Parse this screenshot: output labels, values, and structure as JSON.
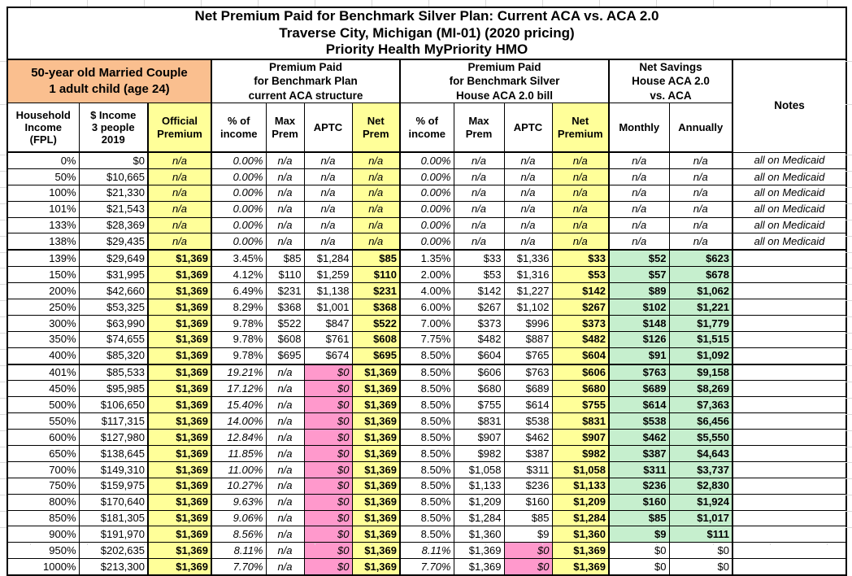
{
  "title_lines": [
    "Net Premium Paid for Benchmark Silver Plan: Current ACA vs. ACA 2.0",
    "Traverse City, Michigan (MI-01) (2020 pricing)",
    "Priority Health MyPriority HMO"
  ],
  "header": {
    "demographic": "50-year old Married Couple\n1 adult child (age 24)",
    "group_aca": "Premium Paid\nfor Benchmark Plan\ncurrent ACA structure",
    "group_aca2": "Premium Paid\nfor Benchmark Silver\nHouse ACA 2.0 bill",
    "group_savings": "Net Savings\nHouse ACA 2.0\nvs. ACA",
    "notes_label": "Notes",
    "columns": [
      "Household\nIncome\n(FPL)",
      "$ Income\n3 people\n2019",
      "Official\nPremium",
      "% of\nincome",
      "Max\nPrem",
      "APTC",
      "Net\nPrem",
      "% of\nincome",
      "Max\nPrem",
      "APTC",
      "Net\nPremium",
      "Monthly",
      "Annually"
    ]
  },
  "colors": {
    "header_orange": "#FABF8F",
    "highlight_yellow": "#FFFF99",
    "aptc_pink": "#FF99CC",
    "savings_green": "#C6EFCE",
    "border": "#000000"
  },
  "chart_data": {
    "type": "table",
    "column_keys": [
      "fpl",
      "income_2019",
      "aca_official_premium",
      "aca_pct_income",
      "aca_max_prem",
      "aca_aptc",
      "aca_net_prem",
      "aca2_pct_income",
      "aca2_max_prem",
      "aca2_aptc",
      "aca2_net_premium",
      "savings_monthly",
      "savings_annually",
      "notes"
    ],
    "rows": [
      {
        "kind": "medicaid",
        "cells": [
          "0%",
          "$0",
          "n/a",
          "0.00%",
          "n/a",
          "n/a",
          "n/a",
          "0.00%",
          "n/a",
          "n/a",
          "n/a",
          "n/a",
          "n/a",
          "all on Medicaid"
        ]
      },
      {
        "kind": "medicaid",
        "cells": [
          "50%",
          "$10,665",
          "n/a",
          "0.00%",
          "n/a",
          "n/a",
          "n/a",
          "0.00%",
          "n/a",
          "n/a",
          "n/a",
          "n/a",
          "n/a",
          "all on Medicaid"
        ]
      },
      {
        "kind": "medicaid",
        "cells": [
          "100%",
          "$21,330",
          "n/a",
          "0.00%",
          "n/a",
          "n/a",
          "n/a",
          "0.00%",
          "n/a",
          "n/a",
          "n/a",
          "n/a",
          "n/a",
          "all on Medicaid"
        ]
      },
      {
        "kind": "medicaid",
        "cells": [
          "101%",
          "$21,543",
          "n/a",
          "0.00%",
          "n/a",
          "n/a",
          "n/a",
          "0.00%",
          "n/a",
          "n/a",
          "n/a",
          "n/a",
          "n/a",
          "all on Medicaid"
        ]
      },
      {
        "kind": "medicaid",
        "cells": [
          "133%",
          "$28,369",
          "n/a",
          "0.00%",
          "n/a",
          "n/a",
          "n/a",
          "0.00%",
          "n/a",
          "n/a",
          "n/a",
          "n/a",
          "n/a",
          "all on Medicaid"
        ]
      },
      {
        "kind": "medicaid",
        "cells": [
          "138%",
          "$29,435",
          "n/a",
          "0.00%",
          "n/a",
          "n/a",
          "n/a",
          "0.00%",
          "n/a",
          "n/a",
          "n/a",
          "n/a",
          "n/a",
          "all on Medicaid"
        ]
      },
      {
        "kind": "mid",
        "cells": [
          "139%",
          "$29,649",
          "$1,369",
          "3.45%",
          "$85",
          "$1,284",
          "$85",
          "1.35%",
          "$33",
          "$1,336",
          "$33",
          "$52",
          "$623",
          ""
        ]
      },
      {
        "kind": "mid",
        "cells": [
          "150%",
          "$31,995",
          "$1,369",
          "4.12%",
          "$110",
          "$1,259",
          "$110",
          "2.00%",
          "$53",
          "$1,316",
          "$53",
          "$57",
          "$678",
          ""
        ]
      },
      {
        "kind": "mid",
        "cells": [
          "200%",
          "$42,660",
          "$1,369",
          "6.49%",
          "$231",
          "$1,138",
          "$231",
          "4.00%",
          "$142",
          "$1,227",
          "$142",
          "$89",
          "$1,062",
          ""
        ]
      },
      {
        "kind": "mid",
        "cells": [
          "250%",
          "$53,325",
          "$1,369",
          "8.29%",
          "$368",
          "$1,001",
          "$368",
          "6.00%",
          "$267",
          "$1,102",
          "$267",
          "$102",
          "$1,221",
          ""
        ]
      },
      {
        "kind": "mid",
        "cells": [
          "300%",
          "$63,990",
          "$1,369",
          "9.78%",
          "$522",
          "$847",
          "$522",
          "7.00%",
          "$373",
          "$996",
          "$373",
          "$148",
          "$1,779",
          ""
        ]
      },
      {
        "kind": "mid",
        "cells": [
          "350%",
          "$74,655",
          "$1,369",
          "9.78%",
          "$608",
          "$761",
          "$608",
          "7.75%",
          "$482",
          "$887",
          "$482",
          "$126",
          "$1,515",
          ""
        ]
      },
      {
        "kind": "mid",
        "cells": [
          "400%",
          "$85,320",
          "$1,369",
          "9.78%",
          "$695",
          "$674",
          "$695",
          "8.50%",
          "$604",
          "$765",
          "$604",
          "$91",
          "$1,092",
          ""
        ]
      },
      {
        "kind": "high",
        "cells": [
          "401%",
          "$85,533",
          "$1,369",
          "19.21%",
          "n/a",
          "$0",
          "$1,369",
          "8.50%",
          "$606",
          "$763",
          "$606",
          "$763",
          "$9,158",
          ""
        ]
      },
      {
        "kind": "high",
        "cells": [
          "450%",
          "$95,985",
          "$1,369",
          "17.12%",
          "n/a",
          "$0",
          "$1,369",
          "8.50%",
          "$680",
          "$689",
          "$680",
          "$689",
          "$8,269",
          ""
        ]
      },
      {
        "kind": "high",
        "cells": [
          "500%",
          "$106,650",
          "$1,369",
          "15.40%",
          "n/a",
          "$0",
          "$1,369",
          "8.50%",
          "$755",
          "$614",
          "$755",
          "$614",
          "$7,363",
          ""
        ]
      },
      {
        "kind": "high",
        "cells": [
          "550%",
          "$117,315",
          "$1,369",
          "14.00%",
          "n/a",
          "$0",
          "$1,369",
          "8.50%",
          "$831",
          "$538",
          "$831",
          "$538",
          "$6,456",
          ""
        ]
      },
      {
        "kind": "high",
        "cells": [
          "600%",
          "$127,980",
          "$1,369",
          "12.84%",
          "n/a",
          "$0",
          "$1,369",
          "8.50%",
          "$907",
          "$462",
          "$907",
          "$462",
          "$5,550",
          ""
        ]
      },
      {
        "kind": "high",
        "cells": [
          "650%",
          "$138,645",
          "$1,369",
          "11.85%",
          "n/a",
          "$0",
          "$1,369",
          "8.50%",
          "$982",
          "$387",
          "$982",
          "$387",
          "$4,643",
          ""
        ]
      },
      {
        "kind": "high",
        "cells": [
          "700%",
          "$149,310",
          "$1,369",
          "11.00%",
          "n/a",
          "$0",
          "$1,369",
          "8.50%",
          "$1,058",
          "$311",
          "$1,058",
          "$311",
          "$3,737",
          ""
        ]
      },
      {
        "kind": "high",
        "cells": [
          "750%",
          "$159,975",
          "$1,369",
          "10.27%",
          "n/a",
          "$0",
          "$1,369",
          "8.50%",
          "$1,133",
          "$236",
          "$1,133",
          "$236",
          "$2,830",
          ""
        ]
      },
      {
        "kind": "high",
        "cells": [
          "800%",
          "$170,640",
          "$1,369",
          "9.63%",
          "n/a",
          "$0",
          "$1,369",
          "8.50%",
          "$1,209",
          "$160",
          "$1,209",
          "$160",
          "$1,924",
          ""
        ]
      },
      {
        "kind": "high",
        "cells": [
          "850%",
          "$181,305",
          "$1,369",
          "9.06%",
          "n/a",
          "$0",
          "$1,369",
          "8.50%",
          "$1,284",
          "$85",
          "$1,284",
          "$85",
          "$1,017",
          ""
        ]
      },
      {
        "kind": "high",
        "cells": [
          "900%",
          "$191,970",
          "$1,369",
          "8.56%",
          "n/a",
          "$0",
          "$1,369",
          "8.50%",
          "$1,360",
          "$9",
          "$1,360",
          "$9",
          "$111",
          ""
        ]
      },
      {
        "kind": "capped",
        "cells": [
          "950%",
          "$202,635",
          "$1,369",
          "8.11%",
          "n/a",
          "$0",
          "$1,369",
          "8.11%",
          "$1,369",
          "$0",
          "$1,369",
          "$0",
          "$0",
          ""
        ]
      },
      {
        "kind": "capped",
        "cells": [
          "1000%",
          "$213,300",
          "$1,369",
          "7.70%",
          "n/a",
          "$0",
          "$1,369",
          "7.70%",
          "$1,369",
          "$0",
          "$1,369",
          "$0",
          "$0",
          ""
        ]
      }
    ]
  }
}
